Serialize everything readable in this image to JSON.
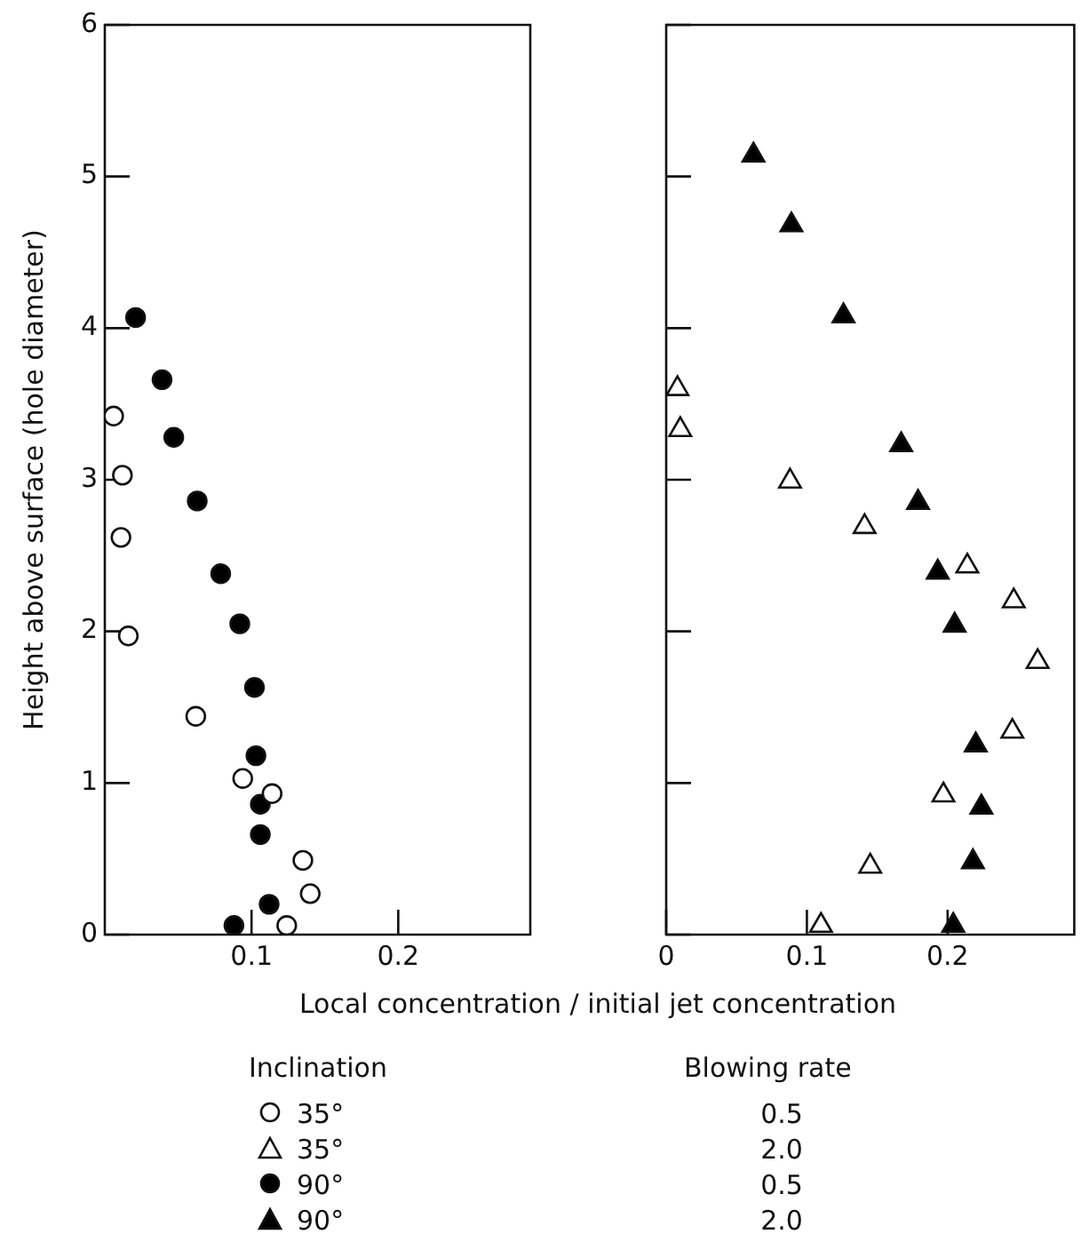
{
  "chart_data": [
    {
      "type": "scatter",
      "xlabel": "Local concentration / initial jet concentration",
      "ylabel": "Height above surface (hole diameter)",
      "legend_title": "Inclination",
      "legend": "bottom",
      "marker": "circle",
      "annotations": [
        "0.5",
        "0.5"
      ],
      "xlim": [
        0,
        0.29
      ],
      "ylim": [
        0,
        6
      ],
      "xticks": [
        0.1,
        0.2
      ],
      "yticks": [
        0,
        1,
        2,
        3,
        4,
        5,
        6
      ],
      "series": [
        {
          "name": "35°",
          "color": "#ffffff",
          "x": [
            0.006,
            0.012,
            0.011,
            0.016,
            0.062,
            0.094,
            0.114,
            0.135,
            0.14,
            0.124
          ],
          "values": [
            3.42,
            3.03,
            2.62,
            1.97,
            1.44,
            1.03,
            0.93,
            0.49,
            0.27,
            0.06
          ]
        },
        {
          "name": "90°",
          "color": "#000000",
          "x": [
            0.021,
            0.039,
            0.047,
            0.063,
            0.079,
            0.092,
            0.102,
            0.103,
            0.106,
            0.106,
            0.112,
            0.088
          ],
          "values": [
            4.07,
            3.66,
            3.28,
            2.86,
            2.38,
            2.05,
            1.63,
            1.18,
            0.86,
            0.66,
            0.2,
            0.06
          ]
        }
      ]
    },
    {
      "type": "scatter",
      "legend_title": "Blowing rate",
      "legend": "bottom",
      "marker": "triangle",
      "annotations": [
        "2.0",
        "2.0"
      ],
      "tick_labels": "x",
      "xlim": [
        0,
        0.29
      ],
      "ylim": [
        0,
        6
      ],
      "xticks": [
        0,
        0.1,
        0.2
      ],
      "yticks": [
        0,
        1,
        2,
        3,
        4,
        5,
        6
      ],
      "series": [
        {
          "name": "35°",
          "color": "#ffffff",
          "x": [
            0.008,
            0.01,
            0.088,
            0.141,
            0.214,
            0.247,
            0.264,
            0.246,
            0.197,
            0.145,
            0.11
          ],
          "values": [
            3.6,
            3.33,
            2.99,
            2.69,
            2.43,
            2.2,
            1.8,
            1.34,
            0.92,
            0.45,
            0.06
          ]
        },
        {
          "name": "90°",
          "color": "#000000",
          "x": [
            0.062,
            0.089,
            0.126,
            0.167,
            0.179,
            0.193,
            0.205,
            0.22,
            0.224,
            0.218,
            0.204
          ],
          "values": [
            5.14,
            4.68,
            4.08,
            3.23,
            2.85,
            2.39,
            2.04,
            1.25,
            0.84,
            0.48,
            0.06
          ]
        }
      ]
    }
  ]
}
